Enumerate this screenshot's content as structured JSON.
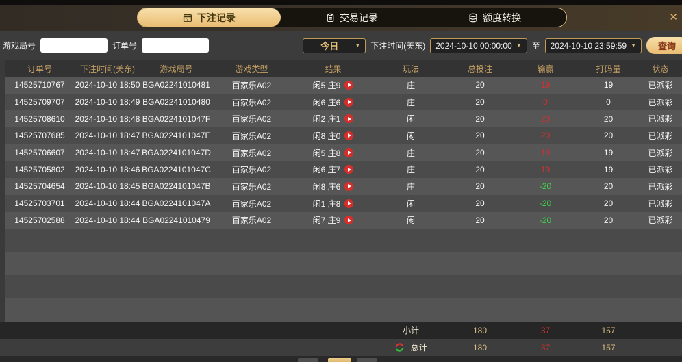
{
  "window": {
    "close_icon": "✕"
  },
  "tabs": [
    {
      "label": "下注记录",
      "active": true
    },
    {
      "label": "交易记录",
      "active": false
    },
    {
      "label": "额度转换",
      "active": false
    }
  ],
  "filters": {
    "game_round_label": "游戏局号",
    "game_round_value": "",
    "order_no_label": "订单号",
    "order_no_value": "",
    "range_selected": "今日",
    "bet_time_label": "下注时间(美东)",
    "start_time": "2024-10-10 00:00:00",
    "to_label": "至",
    "end_time": "2024-10-10 23:59:59",
    "search_button": "查询",
    "dropdown_arrow": "▼"
  },
  "table": {
    "columns": [
      "订单号",
      "下注时间(美东)",
      "游戏局号",
      "游戏类型",
      "结果",
      "玩法",
      "总投注",
      "输赢",
      "打码量",
      "状态"
    ],
    "rows": [
      {
        "order_no": "14525710767",
        "bet_time": "2024-10-10 18:50",
        "game_round": "BGA02241010481",
        "game_type": "百家乐A02",
        "result": "闲5 庄9",
        "play": "庄",
        "total_bet": "20",
        "win_loss": "19",
        "turnover": "19",
        "status": "已派彩"
      },
      {
        "order_no": "14525709707",
        "bet_time": "2024-10-10 18:49",
        "game_round": "BGA02241010480",
        "game_type": "百家乐A02",
        "result": "闲6 庄6",
        "play": "庄",
        "total_bet": "20",
        "win_loss": "0",
        "turnover": "0",
        "status": "已派彩"
      },
      {
        "order_no": "14525708610",
        "bet_time": "2024-10-10 18:48",
        "game_round": "BGA0224101047F",
        "game_type": "百家乐A02",
        "result": "闲2 庄1",
        "play": "闲",
        "total_bet": "20",
        "win_loss": "20",
        "turnover": "20",
        "status": "已派彩"
      },
      {
        "order_no": "14525707685",
        "bet_time": "2024-10-10 18:47",
        "game_round": "BGA0224101047E",
        "game_type": "百家乐A02",
        "result": "闲8 庄0",
        "play": "闲",
        "total_bet": "20",
        "win_loss": "20",
        "turnover": "20",
        "status": "已派彩"
      },
      {
        "order_no": "14525706607",
        "bet_time": "2024-10-10 18:47",
        "game_round": "BGA0224101047D",
        "game_type": "百家乐A02",
        "result": "闲5 庄8",
        "play": "庄",
        "total_bet": "20",
        "win_loss": "19",
        "turnover": "19",
        "status": "已派彩"
      },
      {
        "order_no": "14525705802",
        "bet_time": "2024-10-10 18:46",
        "game_round": "BGA0224101047C",
        "game_type": "百家乐A02",
        "result": "闲6 庄7",
        "play": "庄",
        "total_bet": "20",
        "win_loss": "19",
        "turnover": "19",
        "status": "已派彩"
      },
      {
        "order_no": "14525704654",
        "bet_time": "2024-10-10 18:45",
        "game_round": "BGA0224101047B",
        "game_type": "百家乐A02",
        "result": "闲8 庄6",
        "play": "庄",
        "total_bet": "20",
        "win_loss": "-20",
        "turnover": "20",
        "status": "已派彩"
      },
      {
        "order_no": "14525703701",
        "bet_time": "2024-10-10 18:44",
        "game_round": "BGA0224101047A",
        "game_type": "百家乐A02",
        "result": "闲1 庄8",
        "play": "闲",
        "total_bet": "20",
        "win_loss": "-20",
        "turnover": "20",
        "status": "已派彩"
      },
      {
        "order_no": "14525702588",
        "bet_time": "2024-10-10 18:44",
        "game_round": "BGA02241010479",
        "game_type": "百家乐A02",
        "result": "闲7 庄9",
        "play": "闲",
        "total_bet": "20",
        "win_loss": "-20",
        "turnover": "20",
        "status": "已派彩"
      }
    ],
    "subtotal": {
      "label": "小计",
      "total_bet": "180",
      "win_loss": "37",
      "turnover": "157"
    },
    "total": {
      "label": "总计",
      "total_bet": "180",
      "win_loss": "37",
      "turnover": "157"
    }
  },
  "colors": {
    "accent_gold": "#d9b878",
    "win_red": "#d32f2f",
    "loss_green": "#3fd44b"
  }
}
